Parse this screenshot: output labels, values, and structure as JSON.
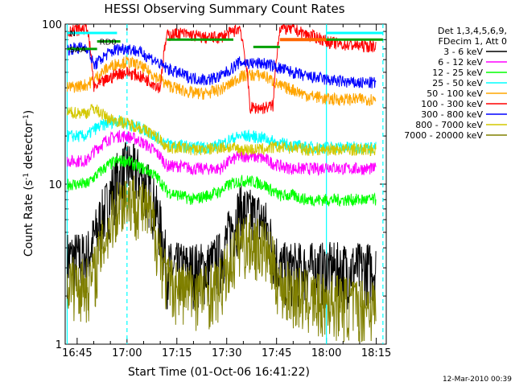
{
  "chart_data": {
    "type": "line",
    "title": "HESSI Observing Summary Count Rates",
    "xlabel": "Start Time (01-Oct-06 16:41:22)",
    "ylabel_main": "Count Rate (s",
    "ylabel_sup": "-1",
    "ylabel_mid": " detector",
    "ylabel_end": ")",
    "y_scale": "log",
    "ylim": [
      1,
      100
    ],
    "y_ticks": [
      "1",
      "10",
      "100"
    ],
    "x_ticks": [
      "16:45",
      "17:00",
      "17:15",
      "17:30",
      "17:45",
      "18:00",
      "18:15"
    ],
    "xlim_min": [
      41.4,
      138
    ],
    "legend_header": [
      "Det 1,3,4,5,6,9,",
      "FDecim 1, Att 0"
    ],
    "legend_placement": "right",
    "series": [
      {
        "name": "3 - 6 keV",
        "color": "#000000",
        "x": [
          42,
          48,
          50,
          54,
          57,
          60,
          63,
          67,
          70,
          72,
          76,
          80,
          84,
          88,
          91,
          94,
          97,
          101,
          104,
          106,
          110,
          114,
          118,
          120,
          124,
          128,
          132,
          135
        ],
        "y": [
          3.5,
          3.5,
          4.5,
          7.5,
          11,
          13,
          12,
          9,
          5.5,
          3,
          3,
          3,
          3,
          3.5,
          5,
          7,
          6.5,
          6,
          4,
          3,
          3,
          3,
          3,
          3,
          3,
          3,
          3,
          3
        ]
      },
      {
        "name": "6 - 12 keV",
        "color": "#ff00ff",
        "x": [
          42,
          48,
          50,
          54,
          57,
          60,
          63,
          67,
          70,
          72,
          76,
          80,
          84,
          88,
          91,
          94,
          97,
          101,
          104,
          106,
          110,
          114,
          118,
          120,
          124,
          128,
          132,
          135
        ],
        "y": [
          14,
          14,
          16,
          19,
          20,
          20,
          19,
          17,
          15,
          13,
          13,
          12.5,
          12.5,
          12.5,
          14,
          15,
          15,
          14.5,
          13.5,
          13,
          12.5,
          12.5,
          12.5,
          13,
          12.5,
          12.5,
          12.5,
          12.5
        ]
      },
      {
        "name": "12 - 25 keV",
        "color": "#00ff00",
        "x": [
          42,
          48,
          50,
          54,
          57,
          60,
          63,
          67,
          70,
          72,
          76,
          80,
          84,
          88,
          91,
          94,
          97,
          101,
          104,
          106,
          110,
          114,
          118,
          120,
          124,
          128,
          132,
          135
        ],
        "y": [
          10,
          10,
          11,
          13,
          14,
          14,
          13,
          12,
          10.5,
          9,
          8.5,
          8,
          8.5,
          9,
          10,
          10.5,
          10.5,
          10,
          9,
          8.5,
          8.5,
          8,
          8,
          8,
          8,
          8,
          8,
          8
        ]
      },
      {
        "name": "25 - 50 keV",
        "color": "#00ffff",
        "x": [
          42,
          48,
          50,
          54,
          57,
          60,
          63,
          67,
          70,
          72,
          76,
          80,
          84,
          88,
          91,
          94,
          97,
          101,
          104,
          106,
          110,
          114,
          118,
          120,
          124,
          128,
          132,
          135
        ],
        "y": [
          20,
          20,
          22,
          24,
          25,
          24,
          23,
          21,
          19,
          18,
          17.5,
          17,
          17,
          17.5,
          19,
          20,
          20,
          19.5,
          18.5,
          18,
          17.5,
          17,
          17,
          17,
          17,
          17,
          17,
          17
        ]
      },
      {
        "name": "50 - 100 keV",
        "color": "#ffa500",
        "x": [
          42,
          48,
          50,
          54,
          57,
          60,
          63,
          67,
          70,
          72,
          76,
          80,
          84,
          88,
          91,
          94,
          97,
          101,
          104,
          106,
          110,
          114,
          118,
          120,
          124,
          128,
          132,
          135
        ],
        "y": [
          40,
          42,
          45,
          53,
          57,
          58,
          56,
          50,
          45,
          42,
          39,
          37,
          37,
          39,
          42,
          47,
          48,
          48,
          44,
          41,
          39,
          36,
          35,
          34,
          34,
          34,
          34,
          34
        ]
      },
      {
        "name": "100 - 300 keV",
        "color": "#ff0000",
        "x": [
          42,
          48,
          50,
          54,
          57,
          60,
          63,
          67,
          70,
          72,
          76,
          80,
          84,
          88,
          91,
          94,
          97,
          101,
          104,
          106,
          110,
          114,
          118,
          120,
          124,
          128,
          132,
          135
        ],
        "y": [
          90,
          95,
          40,
          45,
          49,
          50,
          48,
          44,
          40,
          85,
          88,
          85,
          82,
          83,
          88,
          95,
          30,
          30,
          31,
          95,
          93,
          86,
          82,
          78,
          75,
          74,
          73,
          73
        ]
      },
      {
        "name": "300 - 800 keV",
        "color": "#0000ff",
        "x": [
          42,
          48,
          50,
          54,
          57,
          60,
          63,
          67,
          70,
          72,
          76,
          80,
          84,
          88,
          91,
          94,
          97,
          101,
          104,
          106,
          110,
          114,
          118,
          120,
          124,
          128,
          132,
          135
        ],
        "y": [
          70,
          72,
          55,
          65,
          70,
          71,
          68,
          62,
          56,
          53,
          49,
          46,
          45,
          47,
          52,
          58,
          57,
          57,
          55,
          53,
          50,
          47,
          46,
          45,
          44,
          43,
          43,
          43
        ]
      },
      {
        "name": "800 - 7000 keV",
        "color": "#d4c800",
        "x": [
          42,
          48,
          50,
          54,
          57,
          60,
          63,
          67,
          70,
          72,
          76,
          80,
          84,
          88,
          91,
          94,
          97,
          101,
          104,
          106,
          110,
          114,
          118,
          120,
          124,
          128,
          132,
          135
        ],
        "y": [
          28,
          28,
          30,
          26,
          25,
          24,
          23,
          21,
          19,
          17,
          17,
          16.5,
          16.5,
          17,
          17,
          16.5,
          16.5,
          16.5,
          17,
          17,
          17,
          16.5,
          16.5,
          16.5,
          16.5,
          16.5,
          16.5,
          16.5
        ]
      },
      {
        "name": "7000 - 20000 keV",
        "color": "#808000",
        "x": [
          42,
          48,
          50,
          54,
          57,
          60,
          63,
          67,
          70,
          72,
          76,
          80,
          84,
          88,
          91,
          94,
          97,
          101,
          104,
          106,
          110,
          114,
          118,
          120,
          124,
          128,
          132,
          135
        ],
        "y": [
          2.5,
          2.4,
          2.8,
          5,
          7.5,
          8.5,
          8,
          6.5,
          3.8,
          2.5,
          2.3,
          2.2,
          2.2,
          2.4,
          3.2,
          4.5,
          4.5,
          4.2,
          3.2,
          2.4,
          2.2,
          2,
          1.9,
          1.9,
          1.9,
          1.8,
          1.8,
          1.8
        ]
      }
    ],
    "annotations": [
      {
        "label": "SAA",
        "color": "#00a000",
        "x_start": 42,
        "x_end": 51,
        "y": 70
      },
      {
        "label": "RD0",
        "color": "#00a000",
        "x_start": 51,
        "x_end": 58,
        "y": 78
      },
      {
        "label": "",
        "color": "#00a000",
        "x_start": 72,
        "x_end": 92,
        "y": 80
      },
      {
        "label": "",
        "color": "#00a000",
        "x_start": 98,
        "x_end": 106,
        "y": 72
      },
      {
        "label": "",
        "color": "#00a000",
        "x_start": 107,
        "x_end": 137,
        "y": 80
      },
      {
        "label": "N",
        "color": "#00ffff",
        "x_start": 42,
        "x_end": 57,
        "y": 88
      },
      {
        "label": "",
        "color": "#00ffff",
        "x_start": 120,
        "x_end": 137,
        "y": 88
      }
    ],
    "vertical_lines": [
      {
        "x": 42,
        "color": "#00ffff",
        "style": "solid"
      },
      {
        "x": 60,
        "color": "#00ffff",
        "style": "dashed"
      },
      {
        "x": 120,
        "color": "#00ffff",
        "style": "solid"
      },
      {
        "x": 137,
        "color": "#00ffff",
        "style": "dashed"
      }
    ],
    "orange_bar": {
      "x_start": 106,
      "x_end": 120,
      "y": 80,
      "color": "#ff6600"
    },
    "timestamp": "12-Mar-2010 00:39"
  }
}
